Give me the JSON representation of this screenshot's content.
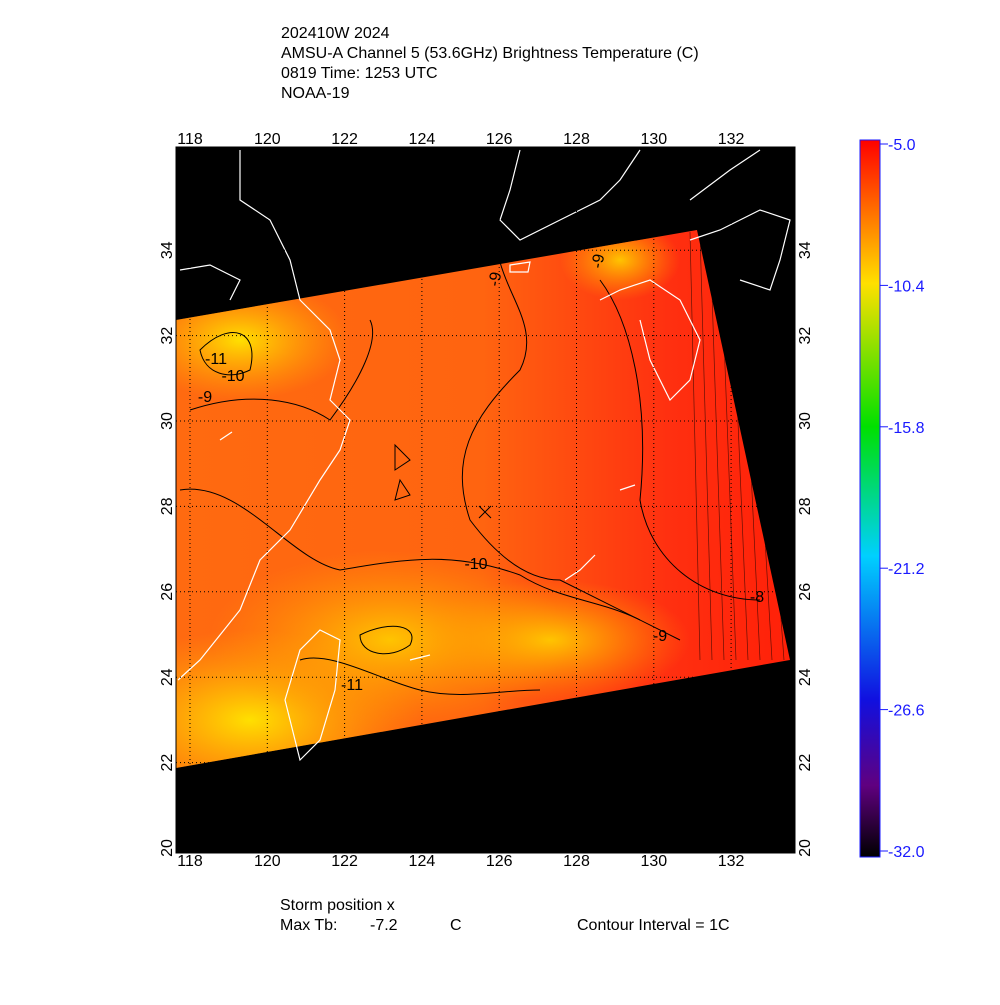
{
  "header": {
    "lines": [
      "202410W 2024",
      "AMSU-A Channel 5 (53.6GHz) Brightness Temperature (C)",
      "0819 Time: 1253 UTC",
      "NOAA-19"
    ]
  },
  "map": {
    "lon_ticks": [
      118,
      120,
      122,
      124,
      126,
      128,
      130,
      132
    ],
    "lat_ticks": [
      20,
      22,
      24,
      26,
      28,
      30,
      32,
      34
    ],
    "contour_labels": [
      "-9",
      "-11",
      "-10",
      "-9",
      "-9",
      "-10",
      "-11",
      "-9",
      "-8"
    ]
  },
  "colorbar": {
    "ticks": [
      {
        "value": -5,
        "label": "-5.0"
      },
      {
        "value": -10.4,
        "label": "-10.4"
      },
      {
        "value": -15.8,
        "label": "-15.8"
      },
      {
        "value": -21.2,
        "label": "-21.2"
      },
      {
        "value": -26.6,
        "label": "-26.6"
      },
      {
        "value": -32,
        "label": "-32.0"
      }
    ]
  },
  "footer": {
    "storm": "Storm position x",
    "max_tb_label": "Max Tb:",
    "max_tb": "-7.2",
    "unit": "C",
    "contour": "Contour Interval = 1C"
  }
}
